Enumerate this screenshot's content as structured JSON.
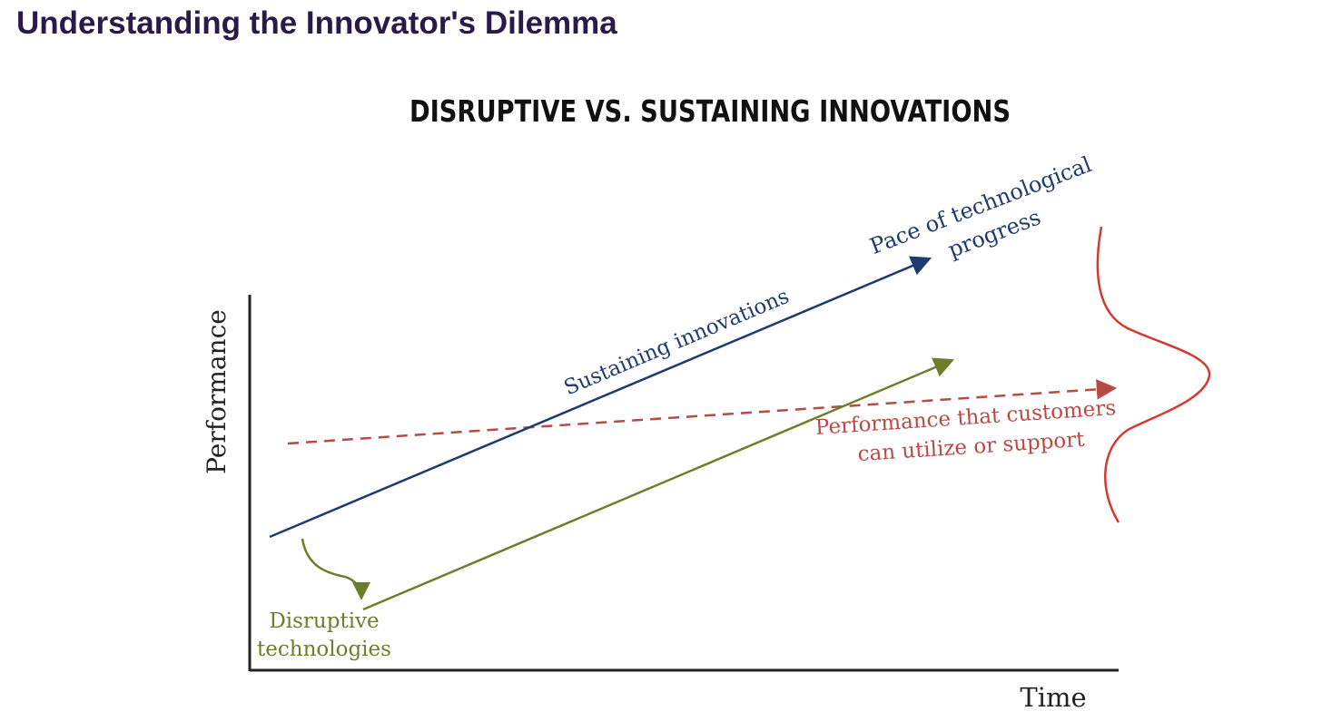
{
  "slide": {
    "title": "Understanding the Innovator's Dilemma"
  },
  "diagram": {
    "heading": "DISRUPTIVE VS. SUSTAINING INNOVATIONS",
    "axes": {
      "y_label": "Performance",
      "x_label": "Time"
    },
    "labels": {
      "sustaining": "Sustaining innovations",
      "pace_line1": "Pace of technological",
      "pace_line2": "progress",
      "customers_line1": "Performance that customers",
      "customers_line2": "can utilize or support",
      "disruptive_line1": "Disruptive",
      "disruptive_line2": "technologies"
    },
    "colors": {
      "sustaining": "#1f3b6e",
      "disruptive": "#6b7f2a",
      "customers": "#b84a45",
      "distribution": "#d23a32",
      "axis": "#222222",
      "heading": "#111111"
    }
  }
}
